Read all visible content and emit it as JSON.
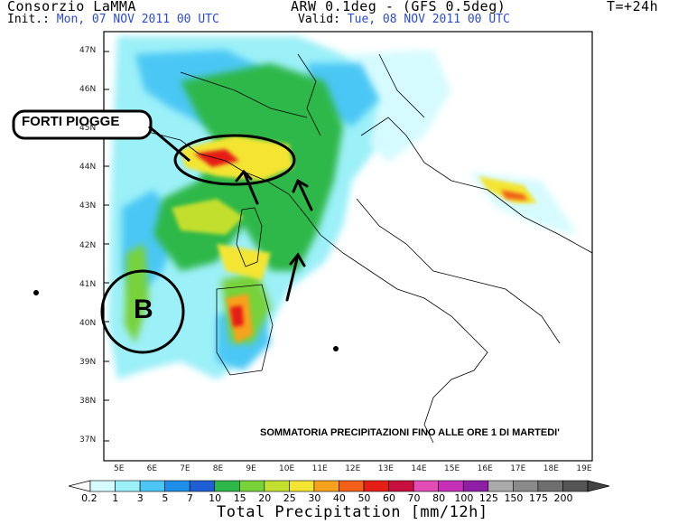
{
  "header": {
    "org": "Consorzio LaMMA",
    "init_label": "Init.:",
    "init_value": "Mon, 07 NOV 2011",
    "init_utc": "00 UTC",
    "model": "ARW 0.1deg - (GFS 0.5deg)",
    "valid_label": "Valid:",
    "valid_value": "Tue, 08 NOV 2011",
    "valid_utc": "00 UTC",
    "step": "T=+24h"
  },
  "axes": {
    "lat_ticks": [
      "47N",
      "46N",
      "45N",
      "44N",
      "43N",
      "42N",
      "41N",
      "40N",
      "39N",
      "38N",
      "37N"
    ],
    "lon_ticks": [
      "5E",
      "6E",
      "7E",
      "8E",
      "9E",
      "10E",
      "11E",
      "12E",
      "13E",
      "14E",
      "15E",
      "16E",
      "17E",
      "18E",
      "19E"
    ]
  },
  "annotations": {
    "heavy_rain": "FORTI PIOGGE",
    "low": "B",
    "summary": "SOMMATORIA PRECIPITAZIONI FINO ALLE ORE 1 DI MARTEDI'"
  },
  "colorbar": {
    "title": "Total Precipitation [mm/12h]",
    "levels": [
      "0.2",
      "1",
      "3",
      "5",
      "7",
      "10",
      "15",
      "20",
      "25",
      "30",
      "40",
      "50",
      "60",
      "70",
      "80",
      "100",
      "125",
      "150",
      "175",
      "200"
    ],
    "colors": [
      "#d6fbff",
      "#9cf0f8",
      "#4cc7f5",
      "#1e8fe8",
      "#1f5fd6",
      "#2fb84a",
      "#78d23a",
      "#c3df2f",
      "#f3e531",
      "#f7a21d",
      "#f26019",
      "#e51f16",
      "#c7103e",
      "#e24cb5",
      "#c62fb8",
      "#8e1fa5",
      "#aaaaaa",
      "#8a8a8a",
      "#6e6e6e",
      "#555555"
    ]
  }
}
